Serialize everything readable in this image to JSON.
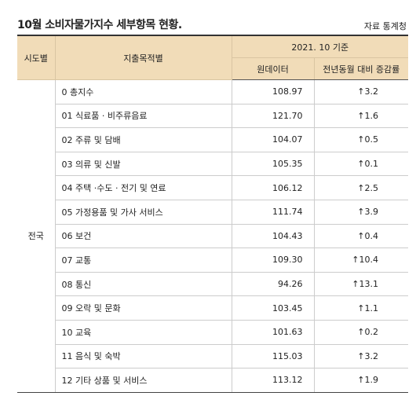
{
  "header": {
    "title": "10월 소비자물가지수 세부항목 현황.",
    "source": "자료 통계청"
  },
  "table": {
    "columns": {
      "region": "시도별",
      "category": "지출목적별",
      "basis": "2021. 10 기준",
      "raw": "원데이터",
      "change": "전년동월 대비 증감률"
    },
    "region": "전국",
    "rows": [
      [
        "0 총지수",
        "108.97",
        "↑3.2"
      ],
      [
        "01 식료품 · 비주류음료",
        "121.70",
        "↑1.6"
      ],
      [
        "02 주류 및 담배",
        "104.07",
        "↑0.5"
      ],
      [
        "03 의류 및 신발",
        "105.35",
        "↑0.1"
      ],
      [
        "04 주택 ·수도 · 전기 및 연료",
        "106.12",
        "↑2.5"
      ],
      [
        "05 가정용품 및 가사 서비스",
        "111.74",
        "↑3.9"
      ],
      [
        "06 보건",
        "104.43",
        "↑0.4"
      ],
      [
        "07 교통",
        "109.30",
        "↑10.4"
      ],
      [
        "08 통신",
        "94.26",
        "↑13.1"
      ],
      [
        "09 오락 및 문화",
        "103.45",
        "↑1.1"
      ],
      [
        "10 교육",
        "101.63",
        "↑0.2"
      ],
      [
        "11 음식 및 숙박",
        "115.03",
        "↑3.2"
      ],
      [
        "12 기타 상품 및 서비스",
        "113.12",
        "↑1.9"
      ]
    ]
  }
}
